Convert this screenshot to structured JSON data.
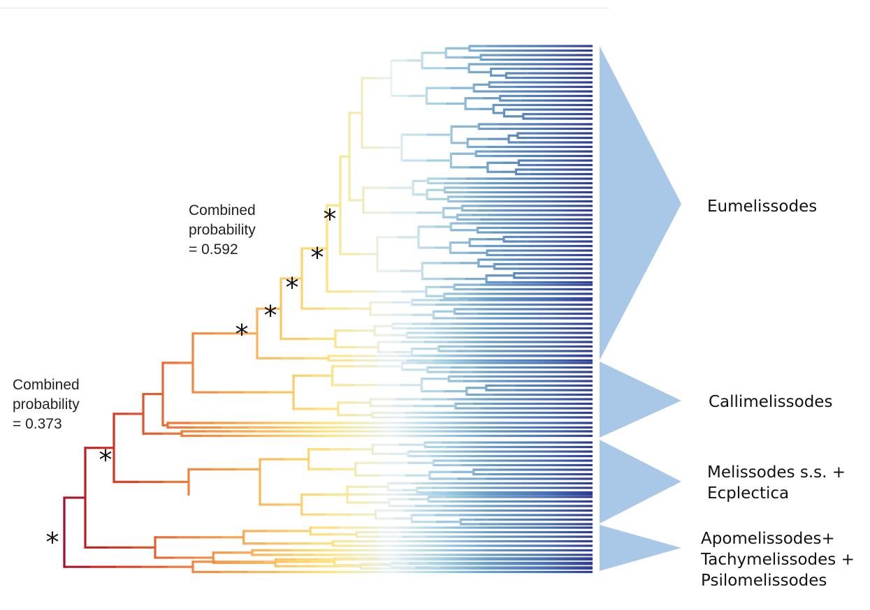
{
  "annotations": [
    {
      "id": "annot-inner",
      "lines": [
        "Combined",
        "probability",
        "= 0.592"
      ]
    },
    {
      "id": "annot-root",
      "lines": [
        "Combined",
        "probability",
        "= 0.373"
      ]
    }
  ],
  "significance_marker": "*",
  "clades": [
    {
      "id": "eumelissodes",
      "lines": [
        "Eumelissodes"
      ]
    },
    {
      "id": "callimelissodes",
      "lines": [
        "Callimelissodes"
      ]
    },
    {
      "id": "melissodes-ss",
      "lines": [
        "Melissodes s.s. +",
        "Ecplectica"
      ]
    },
    {
      "id": "apomelissodes",
      "lines": [
        "Apomelissodes+",
        "Tachymelissodes +",
        "Psilomelissodes"
      ]
    }
  ],
  "colors": {
    "triangle": "#a9c8e8",
    "deep_red": "#a50d2d",
    "red": "#d7301f",
    "orange": "#f07d3a",
    "light_orange": "#fbb559",
    "yellow": "#fde47f",
    "pale": "#e8f1f4",
    "light_blue": "#a7d0e4",
    "mid_blue": "#6a9ec8",
    "blue": "#4a72b5",
    "navy": "#2e3a93"
  }
}
